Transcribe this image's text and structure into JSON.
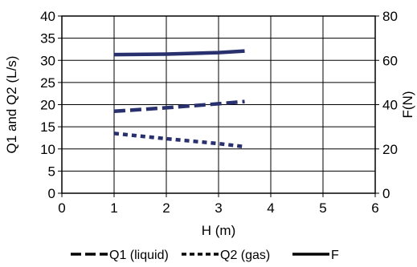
{
  "chart_data": {
    "type": "line",
    "xlabel": "H (m)",
    "ylabel": "Q1 and Q2 (L/s)",
    "y2label": "F(N)",
    "xlim": [
      0,
      6
    ],
    "ylim": [
      0,
      40
    ],
    "y2lim": [
      0,
      80
    ],
    "x_ticks": [
      0,
      1,
      2,
      3,
      4,
      5,
      6
    ],
    "y_ticks": [
      0,
      5,
      10,
      15,
      20,
      25,
      30,
      35,
      40
    ],
    "y2_ticks": [
      0,
      20,
      40,
      60,
      80
    ],
    "grid": true,
    "legend_position": "bottom",
    "series": [
      {
        "name": "Q1 (liquid)",
        "axis": "left",
        "style": "dashed",
        "color": "#28306e",
        "points": [
          [
            1.0,
            18.5
          ],
          [
            2.0,
            19.3
          ],
          [
            3.0,
            20.2
          ],
          [
            3.5,
            20.7
          ]
        ]
      },
      {
        "name": "Q2 (gas)",
        "axis": "left",
        "style": "dotted",
        "color": "#28306e",
        "points": [
          [
            1.0,
            13.5
          ],
          [
            2.0,
            12.3
          ],
          [
            3.0,
            11.2
          ],
          [
            3.5,
            10.5
          ]
        ]
      },
      {
        "name": "F",
        "axis": "right",
        "style": "solid",
        "color": "#28306e",
        "points": [
          [
            1.0,
            62.6
          ],
          [
            2.0,
            62.8
          ],
          [
            3.0,
            63.5
          ],
          [
            3.5,
            64.2
          ]
        ]
      }
    ]
  }
}
